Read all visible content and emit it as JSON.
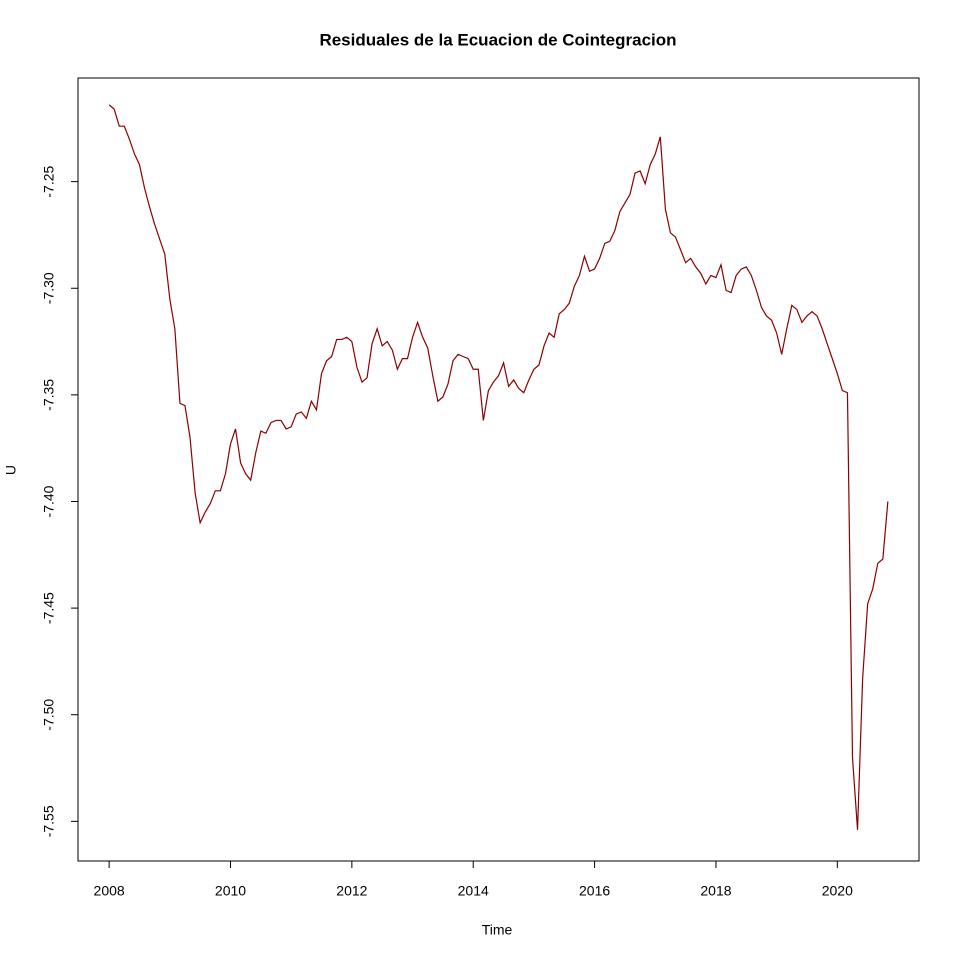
{
  "chart_data": {
    "type": "line",
    "title": "Residuales de la Ecuacion de Cointegracion",
    "x_label": "Time",
    "y_label": "U",
    "xlim": [
      2007.487,
      2021.346
    ],
    "ylim": [
      -7.5686,
      -7.2014
    ],
    "xticks": [
      2008,
      2010,
      2012,
      2014,
      2016,
      2018,
      2020
    ],
    "yticks": [
      {
        "value": -7.25,
        "label": "-7.25"
      },
      {
        "value": -7.3,
        "label": "-7.30"
      },
      {
        "value": -7.35,
        "label": "-7.35"
      },
      {
        "value": -7.4,
        "label": "-7.40"
      },
      {
        "value": -7.45,
        "label": "-7.45"
      },
      {
        "value": -7.5,
        "label": "-7.50"
      },
      {
        "value": -7.55,
        "label": "-7.55"
      }
    ],
    "grid": false,
    "x": [
      2008.0,
      2008.083,
      2008.167,
      2008.25,
      2008.333,
      2008.417,
      2008.5,
      2008.583,
      2008.667,
      2008.75,
      2008.833,
      2008.917,
      2009.0,
      2009.083,
      2009.167,
      2009.25,
      2009.333,
      2009.417,
      2009.5,
      2009.583,
      2009.667,
      2009.75,
      2009.833,
      2009.917,
      2010.0,
      2010.083,
      2010.167,
      2010.25,
      2010.333,
      2010.417,
      2010.5,
      2010.583,
      2010.667,
      2010.75,
      2010.833,
      2010.917,
      2011.0,
      2011.083,
      2011.167,
      2011.25,
      2011.333,
      2011.417,
      2011.5,
      2011.583,
      2011.667,
      2011.75,
      2011.833,
      2011.917,
      2012.0,
      2012.083,
      2012.167,
      2012.25,
      2012.333,
      2012.417,
      2012.5,
      2012.583,
      2012.667,
      2012.75,
      2012.833,
      2012.917,
      2013.0,
      2013.083,
      2013.167,
      2013.25,
      2013.333,
      2013.417,
      2013.5,
      2013.583,
      2013.667,
      2013.75,
      2013.833,
      2013.917,
      2014.0,
      2014.083,
      2014.167,
      2014.25,
      2014.333,
      2014.417,
      2014.5,
      2014.583,
      2014.667,
      2014.75,
      2014.833,
      2014.917,
      2015.0,
      2015.083,
      2015.167,
      2015.25,
      2015.333,
      2015.417,
      2015.5,
      2015.583,
      2015.667,
      2015.75,
      2015.833,
      2015.917,
      2016.0,
      2016.083,
      2016.167,
      2016.25,
      2016.333,
      2016.417,
      2016.5,
      2016.583,
      2016.667,
      2016.75,
      2016.833,
      2016.917,
      2017.0,
      2017.083,
      2017.167,
      2017.25,
      2017.333,
      2017.417,
      2017.5,
      2017.583,
      2017.667,
      2017.75,
      2017.833,
      2017.917,
      2018.0,
      2018.083,
      2018.167,
      2018.25,
      2018.333,
      2018.417,
      2018.5,
      2018.583,
      2018.667,
      2018.75,
      2018.833,
      2018.917,
      2019.0,
      2019.083,
      2019.167,
      2019.25,
      2019.333,
      2019.417,
      2019.5,
      2019.583,
      2019.667,
      2019.75,
      2019.833,
      2019.917,
      2020.0,
      2020.083,
      2020.167,
      2020.25,
      2020.333,
      2020.417,
      2020.5,
      2020.583,
      2020.667,
      2020.75,
      2020.833
    ],
    "series": [
      {
        "name": "U",
        "color": "#8b0000",
        "values": [
          -7.214,
          -7.216,
          -7.224,
          -7.224,
          -7.23,
          -7.237,
          -7.242,
          -7.253,
          -7.262,
          -7.27,
          -7.277,
          -7.284,
          -7.305,
          -7.319,
          -7.354,
          -7.355,
          -7.37,
          -7.396,
          -7.41,
          -7.405,
          -7.401,
          -7.395,
          -7.395,
          -7.387,
          -7.373,
          -7.366,
          -7.382,
          -7.387,
          -7.39,
          -7.377,
          -7.367,
          -7.368,
          -7.363,
          -7.362,
          -7.362,
          -7.366,
          -7.365,
          -7.359,
          -7.358,
          -7.361,
          -7.353,
          -7.357,
          -7.34,
          -7.334,
          -7.332,
          -7.324,
          -7.324,
          -7.323,
          -7.325,
          -7.337,
          -7.344,
          -7.342,
          -7.326,
          -7.319,
          -7.327,
          -7.325,
          -7.329,
          -7.338,
          -7.333,
          -7.333,
          -7.323,
          -7.316,
          -7.323,
          -7.328,
          -7.341,
          -7.353,
          -7.351,
          -7.345,
          -7.334,
          -7.331,
          -7.332,
          -7.333,
          -7.338,
          -7.338,
          -7.362,
          -7.348,
          -7.344,
          -7.341,
          -7.335,
          -7.346,
          -7.343,
          -7.347,
          -7.349,
          -7.343,
          -7.338,
          -7.336,
          -7.327,
          -7.321,
          -7.323,
          -7.312,
          -7.31,
          -7.307,
          -7.299,
          -7.294,
          -7.285,
          -7.292,
          -7.291,
          -7.286,
          -7.279,
          -7.278,
          -7.273,
          -7.264,
          -7.26,
          -7.256,
          -7.246,
          -7.245,
          -7.251,
          -7.242,
          -7.237,
          -7.229,
          -7.263,
          -7.274,
          -7.276,
          -7.282,
          -7.288,
          -7.286,
          -7.29,
          -7.293,
          -7.298,
          -7.294,
          -7.295,
          -7.289,
          -7.301,
          -7.302,
          -7.294,
          -7.291,
          -7.29,
          -7.294,
          -7.301,
          -7.309,
          -7.313,
          -7.315,
          -7.321,
          -7.331,
          -7.319,
          -7.308,
          -7.31,
          -7.316,
          -7.313,
          -7.311,
          -7.313,
          -7.319,
          -7.326,
          -7.333,
          -7.34,
          -7.348,
          -7.349,
          -7.52,
          -7.554,
          -7.483,
          -7.448,
          -7.441,
          -7.429,
          -7.427,
          -7.4
        ]
      }
    ]
  }
}
